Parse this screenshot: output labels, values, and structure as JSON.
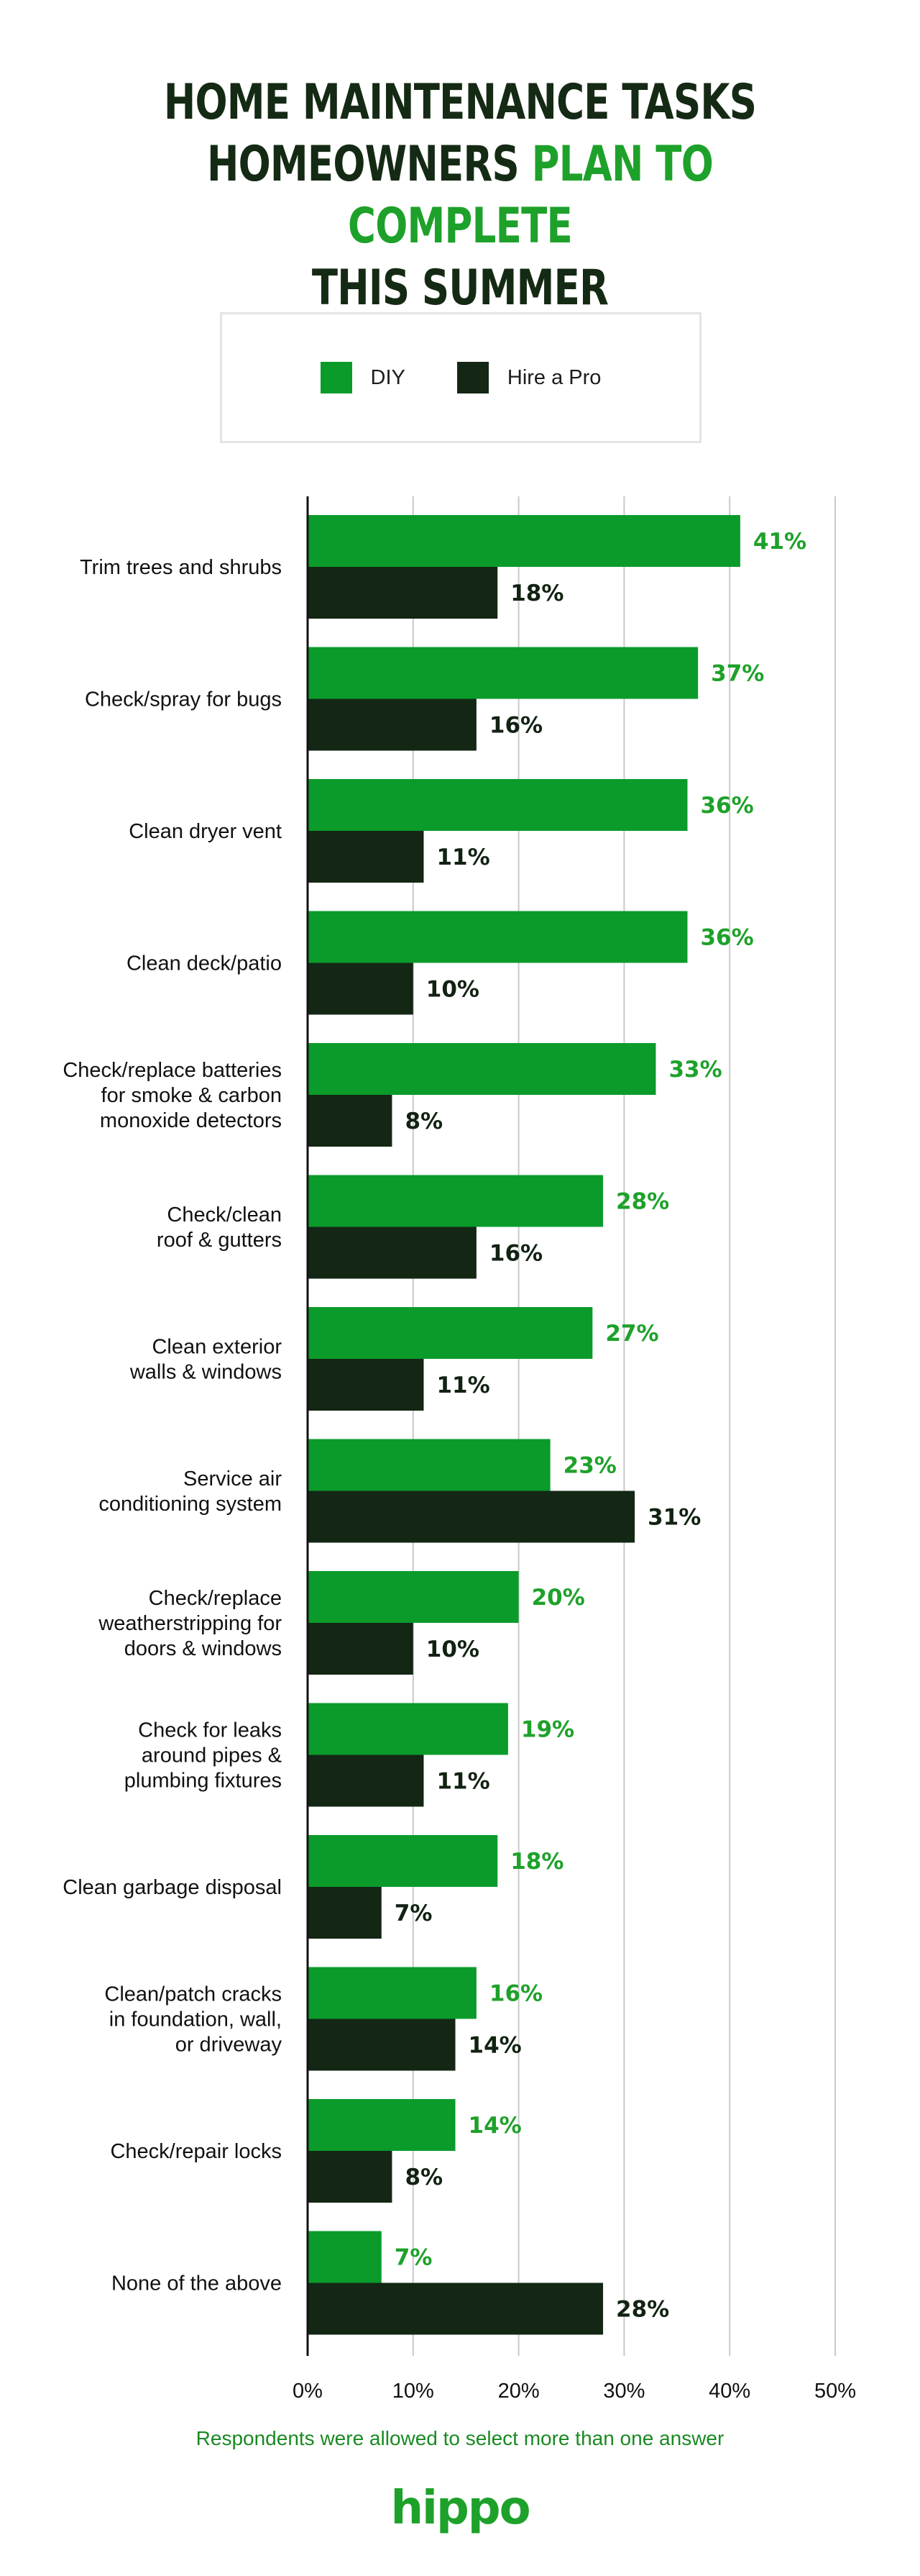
{
  "title": {
    "line1": "HOME MAINTENANCE TASKS",
    "line2_part1": "HOMEOWNERS ",
    "line2_part2": "PLAN TO COMPLETE",
    "line3": "THIS SUMMER"
  },
  "colors": {
    "diy": "#0a9b2a",
    "pro": "#132714",
    "accent": "#1ea12a",
    "grid": "#c9c9c9"
  },
  "chart_data": {
    "type": "bar",
    "orientation": "horizontal",
    "categories": [
      [
        "Trim trees and shrubs"
      ],
      [
        "Check/spray for bugs"
      ],
      [
        "Clean dryer vent"
      ],
      [
        "Clean deck/patio"
      ],
      [
        "Check/replace batteries",
        "for smoke & carbon",
        "monoxide detectors"
      ],
      [
        "Check/clean",
        "roof & gutters"
      ],
      [
        "Clean exterior",
        "walls & windows"
      ],
      [
        "Service air",
        "conditioning system"
      ],
      [
        "Check/replace",
        "weatherstripping for",
        "doors & windows"
      ],
      [
        "Check for leaks",
        "around pipes &",
        "plumbing fixtures"
      ],
      [
        "Clean garbage disposal"
      ],
      [
        "Clean/patch cracks",
        "in foundation, wall,",
        "or driveway"
      ],
      [
        "Check/repair locks"
      ],
      [
        "None of the above"
      ]
    ],
    "series": [
      {
        "name": "DIY",
        "values": [
          41,
          37,
          36,
          36,
          33,
          28,
          27,
          23,
          20,
          19,
          18,
          16,
          14,
          7
        ]
      },
      {
        "name": "Hire a Pro",
        "values": [
          18,
          16,
          11,
          10,
          8,
          16,
          11,
          31,
          10,
          11,
          7,
          14,
          8,
          28
        ]
      }
    ],
    "xlim": [
      0,
      50
    ],
    "xticks": [
      "0%",
      "10%",
      "20%",
      "30%",
      "40%",
      "50%"
    ],
    "grid": true,
    "legend_position": "top"
  },
  "footnote": "Respondents were allowed to select more than one answer",
  "logo": "hippo"
}
